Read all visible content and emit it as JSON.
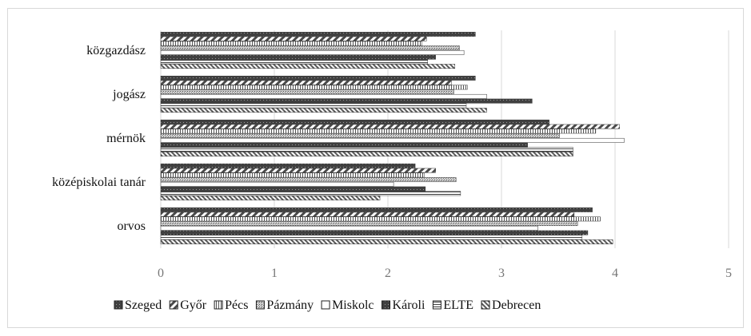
{
  "chart_data": {
    "type": "bar",
    "orientation": "horizontal",
    "title": "",
    "xlabel": "",
    "ylabel": "",
    "xlim": [
      0,
      5
    ],
    "ticks": [
      "0",
      "1",
      "2",
      "3",
      "4",
      "5"
    ],
    "grid": true,
    "legend_position": "bottom",
    "categories": [
      "közgazdász",
      "jogász",
      "mérnök",
      "középiskolai tanár",
      "orvos"
    ],
    "series": [
      {
        "name": "Szeged",
        "pattern": "dark-dotted",
        "values": [
          2.77,
          2.77,
          3.42,
          2.24,
          3.8
        ]
      },
      {
        "name": "Győr",
        "pattern": "diag-hatch",
        "values": [
          2.34,
          2.56,
          4.04,
          2.42,
          3.64
        ]
      },
      {
        "name": "Pécs",
        "pattern": "vert-lines",
        "values": [
          2.3,
          2.7,
          3.83,
          2.32,
          3.87
        ]
      },
      {
        "name": "Pázmány",
        "pattern": "dense-dots",
        "values": [
          2.63,
          2.58,
          3.51,
          2.6,
          3.67
        ]
      },
      {
        "name": "Miskolc",
        "pattern": "white",
        "values": [
          2.67,
          2.87,
          4.08,
          2.05,
          3.32
        ]
      },
      {
        "name": "Károli",
        "pattern": "dark-dotted",
        "values": [
          2.42,
          3.27,
          3.23,
          2.33,
          3.76
        ]
      },
      {
        "name": "ELTE",
        "pattern": "horiz-lines",
        "values": [
          2.35,
          2.69,
          3.63,
          2.64,
          3.71
        ]
      },
      {
        "name": "Debrecen",
        "pattern": "diag-dense",
        "values": [
          2.59,
          2.87,
          3.63,
          1.93,
          3.98
        ]
      }
    ]
  }
}
